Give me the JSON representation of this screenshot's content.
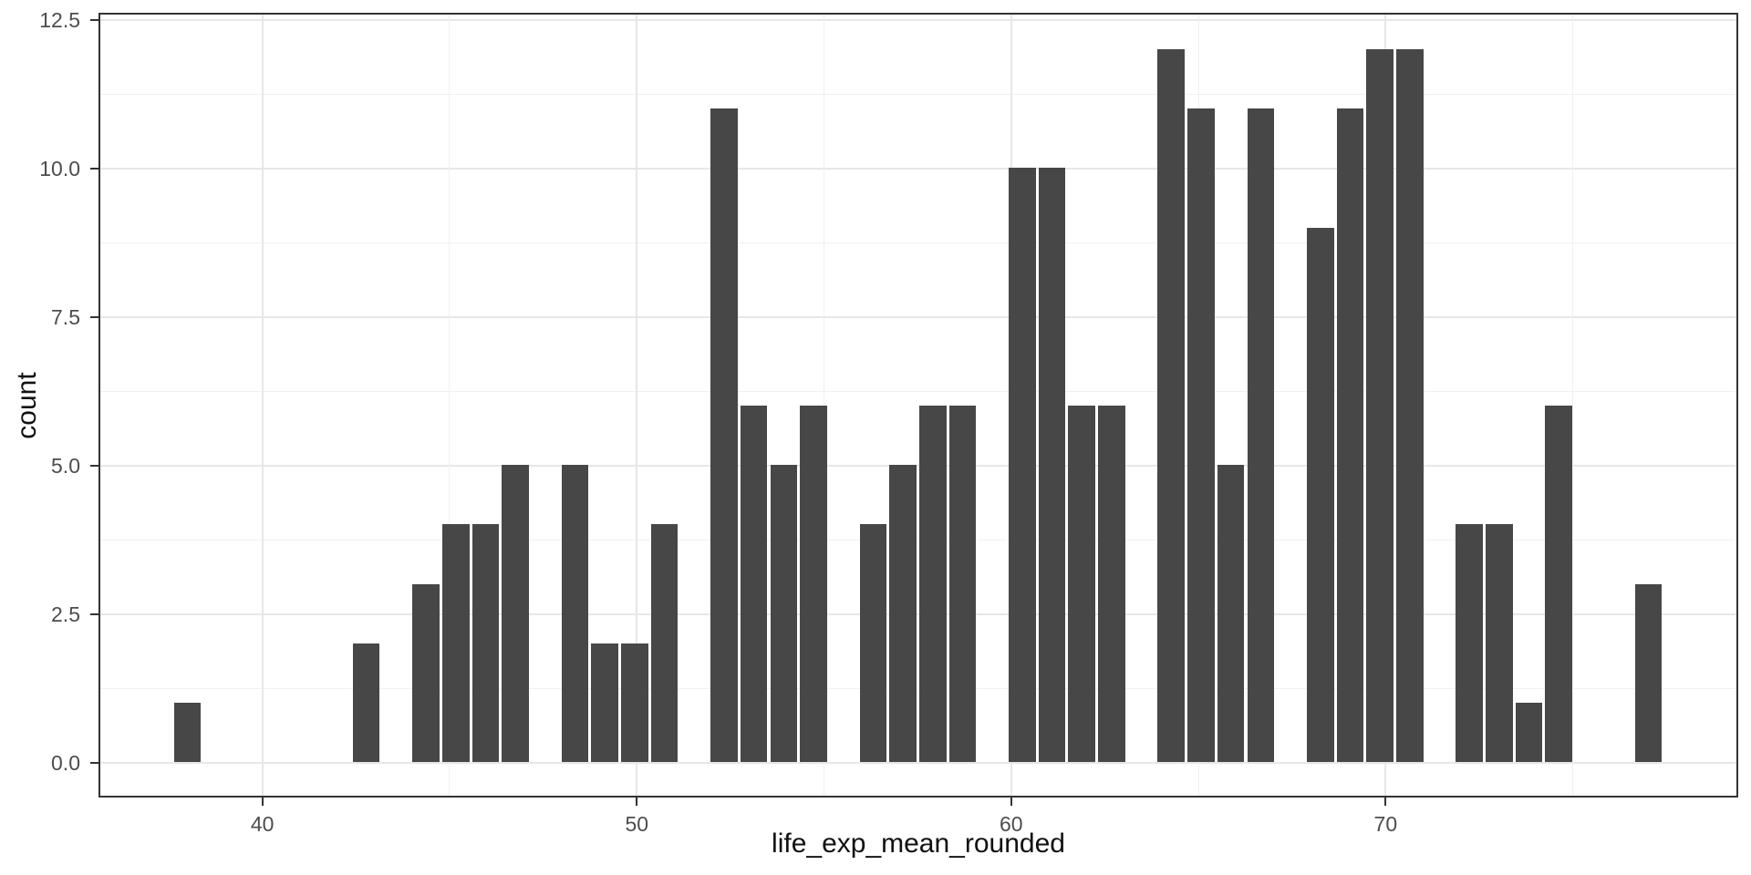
{
  "chart_data": {
    "type": "bar",
    "subtype": "histogram",
    "title": "",
    "xlabel": "life_exp_mean_rounded",
    "ylabel": "count",
    "x": [
      38.0,
      42.8,
      44.4,
      45.2,
      46.0,
      46.8,
      48.4,
      49.2,
      50.0,
      50.8,
      52.4,
      53.2,
      54.0,
      54.8,
      56.4,
      57.2,
      58.0,
      58.8,
      60.4,
      61.2,
      62.0,
      62.8,
      64.4,
      65.2,
      66.0,
      66.8,
      68.4,
      69.2,
      70.0,
      70.8,
      72.4,
      73.2,
      74.0,
      74.8,
      77.2
    ],
    "values": [
      1,
      2,
      3,
      4,
      4,
      5,
      5,
      2,
      2,
      4,
      11,
      6,
      5,
      6,
      4,
      5,
      6,
      6,
      10,
      10,
      6,
      6,
      12,
      11,
      5,
      11,
      9,
      11,
      12,
      12,
      4,
      4,
      1,
      6,
      3
    ],
    "bin_width": 0.8,
    "xlim": [
      35.6,
      79.4
    ],
    "ylim": [
      -0.6,
      12.6
    ],
    "x_ticks": [
      40,
      50,
      60,
      70
    ],
    "y_ticks": [
      0.0,
      2.5,
      5.0,
      7.5,
      10.0,
      12.5
    ],
    "x_minor_ticks": [
      45,
      55,
      65,
      75
    ],
    "y_minor_ticks": [
      1.25,
      3.75,
      6.25,
      8.75,
      11.25
    ],
    "grid": true,
    "legend_position": "none",
    "bar_color": "#474747",
    "panel_border_color": "#333333",
    "grid_major_color": "#e7e7e7",
    "grid_minor_color": "#f0f0f0",
    "tick_label_color": "#4d4d4d",
    "axis_title_color": "#111111",
    "background_color": "#ffffff"
  }
}
